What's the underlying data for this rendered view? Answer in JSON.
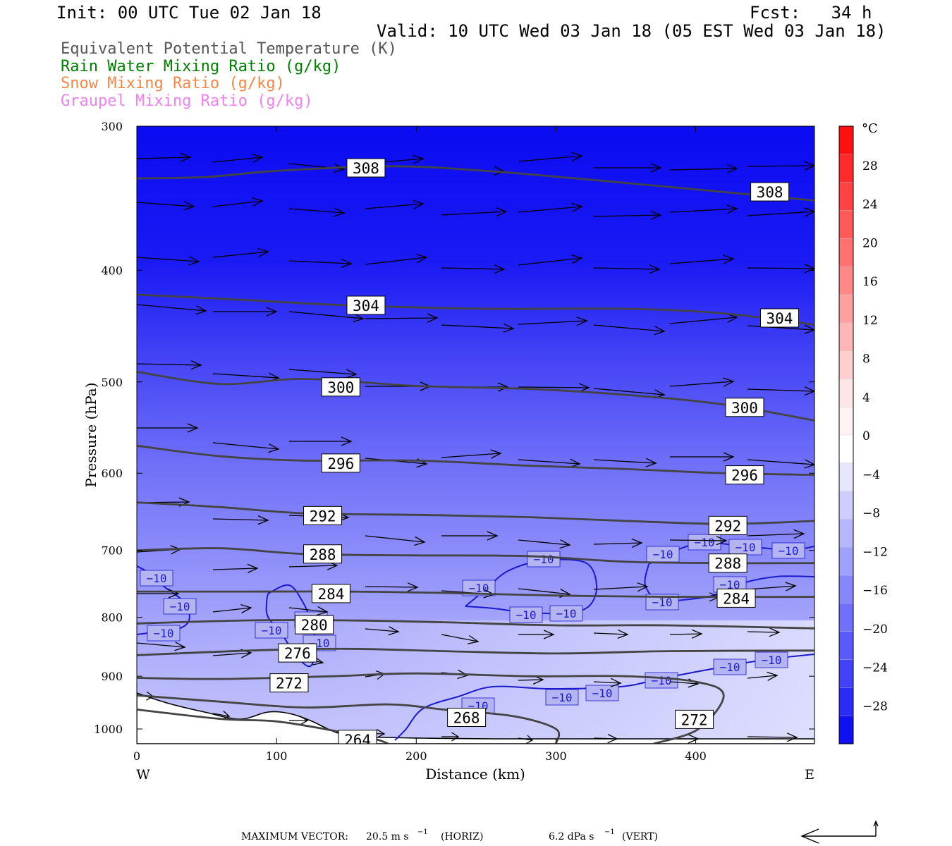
{
  "header": {
    "init": "Init: 00 UTC Tue 02 Jan 18",
    "fcst": "Fcst:   34 h",
    "valid": "Valid: 10 UTC Wed 03 Jan 18 (05 EST Wed 03 Jan 18)"
  },
  "fields": [
    {
      "label": "Equivalent Potential Temperature (K)",
      "color": "#555555"
    },
    {
      "label": "Rain Water Mixing Ratio (g/kg)",
      "color": "#008000"
    },
    {
      "label": "Snow Mixing Ratio (g/kg)",
      "color": "#f0884a"
    },
    {
      "label": "Graupel Mixing Ratio (g/kg)",
      "color": "#ee82ee"
    }
  ],
  "chart_data": {
    "type": "cross-section",
    "xlabel": "Distance (km)",
    "ylabel": "Pressure (hPa)",
    "xlim": [
      0,
      485
    ],
    "ylim": [
      300,
      1030
    ],
    "y_scale": "log",
    "x_ticks": [
      "0",
      "100",
      "200",
      "300",
      "400"
    ],
    "y_ticks": [
      "300",
      "400",
      "500",
      "600",
      "700",
      "800",
      "900",
      "1000"
    ],
    "left_end": "W",
    "right_end": "E",
    "colorbar": {
      "unit": "°C",
      "labels": [
        "28",
        "24",
        "20",
        "16",
        "12",
        "8",
        "4",
        "0",
        "−4",
        "−8",
        "−12",
        "−16",
        "−20",
        "−24",
        "−28"
      ],
      "colors": [
        "#ff1010",
        "#ff2b2b",
        "#ff4242",
        "#ff5a5a",
        "#ff7070",
        "#ff8787",
        "#ff9f9f",
        "#ffb6b6",
        "#ffcece",
        "#ffe6e6",
        "#fff3f3",
        "#ffffff",
        "#e6e6ff",
        "#cecefe",
        "#b6b6fd",
        "#9f9ffc",
        "#8787fb",
        "#7070fa",
        "#5a5afa",
        "#4242f8",
        "#2b2bf6",
        "#1010f2"
      ]
    },
    "theta_e_contours": [
      {
        "value": 308,
        "points": [
          [
            0,
            333
          ],
          [
            50,
            332
          ],
          [
            100,
            328
          ],
          [
            180,
            325
          ],
          [
            250,
            328
          ],
          [
            350,
            336
          ],
          [
            485,
            348
          ]
        ],
        "labels": [
          [
            164,
            326
          ],
          [
            453,
            342
          ]
        ]
      },
      {
        "value": 304,
        "points": [
          [
            0,
            420
          ],
          [
            70,
            424
          ],
          [
            150,
            429
          ],
          [
            250,
            432
          ],
          [
            350,
            432
          ],
          [
            420,
            436
          ],
          [
            485,
            446
          ]
        ],
        "labels": [
          [
            164,
            429
          ],
          [
            460,
            440
          ]
        ]
      },
      {
        "value": 300,
        "points": [
          [
            0,
            490
          ],
          [
            60,
            502
          ],
          [
            120,
            497
          ],
          [
            200,
            504
          ],
          [
            280,
            507
          ],
          [
            350,
            513
          ],
          [
            420,
            523
          ],
          [
            485,
            540
          ]
        ],
        "labels": [
          [
            146,
            505
          ],
          [
            435,
            526
          ]
        ]
      },
      {
        "value": 296,
        "points": [
          [
            0,
            568
          ],
          [
            60,
            580
          ],
          [
            120,
            585
          ],
          [
            200,
            585
          ],
          [
            280,
            591
          ],
          [
            350,
            595
          ],
          [
            420,
            600
          ],
          [
            485,
            602
          ]
        ],
        "labels": [
          [
            146,
            588
          ],
          [
            435,
            602
          ]
        ]
      },
      {
        "value": 292,
        "points": [
          [
            0,
            636
          ],
          [
            60,
            642
          ],
          [
            120,
            650
          ],
          [
            200,
            652
          ],
          [
            280,
            655
          ],
          [
            350,
            660
          ],
          [
            420,
            664
          ],
          [
            485,
            660
          ]
        ],
        "labels": [
          [
            133,
            653
          ],
          [
            423,
            666
          ]
        ]
      },
      {
        "value": 288,
        "points": [
          [
            0,
            700
          ],
          [
            60,
            697
          ],
          [
            120,
            705
          ],
          [
            200,
            707
          ],
          [
            280,
            708
          ],
          [
            350,
            716
          ],
          [
            420,
            718
          ],
          [
            485,
            718
          ]
        ],
        "labels": [
          [
            133,
            705
          ],
          [
            423,
            718
          ]
        ]
      },
      {
        "value": 284,
        "points": [
          [
            0,
            760
          ],
          [
            80,
            760
          ],
          [
            150,
            760
          ],
          [
            220,
            762
          ],
          [
            300,
            766
          ],
          [
            380,
            768
          ],
          [
            485,
            768
          ]
        ],
        "labels": [
          [
            139,
            763
          ],
          [
            429,
            770
          ]
        ]
      },
      {
        "value": 280,
        "points": [
          [
            0,
            810
          ],
          [
            80,
            805
          ],
          [
            150,
            805
          ],
          [
            220,
            808
          ],
          [
            300,
            813
          ],
          [
            380,
            813
          ],
          [
            485,
            818
          ]
        ],
        "labels": [
          [
            127,
            812
          ]
        ]
      },
      {
        "value": 276,
        "points": [
          [
            0,
            863
          ],
          [
            80,
            855
          ],
          [
            150,
            852
          ],
          [
            220,
            856
          ],
          [
            300,
            860
          ],
          [
            380,
            856
          ],
          [
            485,
            855
          ]
        ],
        "labels": [
          [
            115,
            859
          ]
        ]
      },
      {
        "value": 272,
        "points": [
          [
            0,
            903
          ],
          [
            60,
            905
          ],
          [
            140,
            900
          ],
          [
            200,
            895
          ],
          [
            280,
            900
          ],
          [
            350,
            900
          ],
          [
            400,
            910
          ],
          [
            420,
            935
          ],
          [
            402,
            1000
          ],
          [
            370,
            1030
          ]
        ],
        "labels": [
          [
            109,
            912
          ],
          [
            399,
            981
          ]
        ]
      },
      {
        "value": 268,
        "points": [
          [
            0,
            935
          ],
          [
            60,
            947
          ],
          [
            120,
            958
          ],
          [
            180,
            952
          ],
          [
            220,
            962
          ],
          [
            270,
            975
          ],
          [
            300,
            1000
          ],
          [
            300,
            1030
          ]
        ],
        "labels": [
          [
            236,
            977
          ]
        ]
      },
      {
        "value": 264,
        "points": [
          [
            0,
            962
          ],
          [
            60,
            980
          ],
          [
            100,
            985
          ],
          [
            140,
            1003
          ],
          [
            170,
            1020
          ],
          [
            180,
            1030
          ]
        ],
        "labels": [
          [
            158,
            1021
          ]
        ]
      }
    ],
    "temperature_contours": [
      {
        "value": -10,
        "label": "−10"
      }
    ],
    "max_vector": {
      "label": "MAXIMUM VECTOR:",
      "horiz": "20.5 m s",
      "horiz_unit": "(HORIZ)",
      "vert": "6.2 dPa s",
      "vert_unit": "(VERT)",
      "exponent": "−1"
    }
  }
}
